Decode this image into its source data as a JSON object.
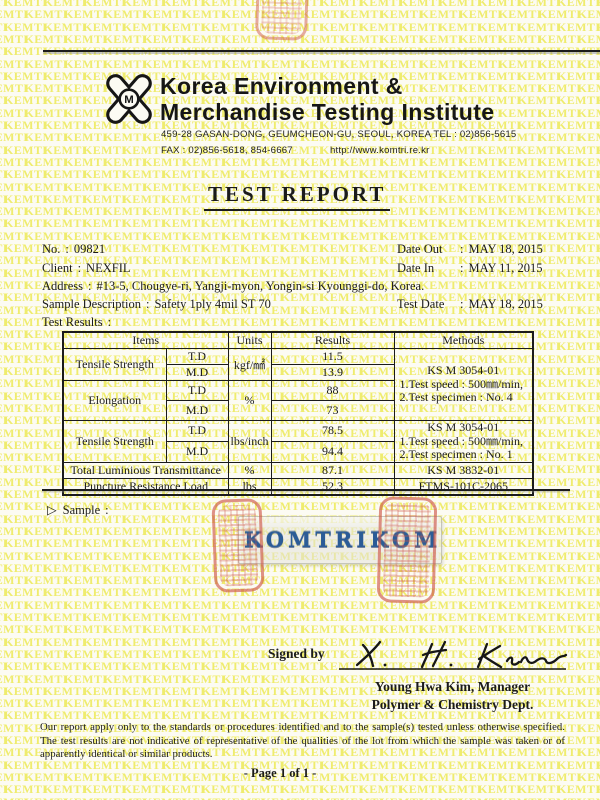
{
  "watermark": {
    "text": "KEMTI",
    "color": "#efec6e"
  },
  "colors": {
    "ink": "#1b1b1b",
    "watermark_yellow": "#efec6e",
    "stamp_red": "#ce5648",
    "film_text_blue": "#2b5c97"
  },
  "header": {
    "logo_letter": "M",
    "org_name_line1": "Korea Environment &",
    "org_name_line2": "Merchandise Testing Institute",
    "address_line": "459-28 GASAN-DONG, GEUMCHEON-GU, SEOUL, KOREA TEL : 02)856-5615",
    "fax_line": "FAX : 02)856-5618, 854-6667",
    "website": "http://www.komtri.re.kr"
  },
  "title": "TEST REPORT",
  "report_info": {
    "colon": ":",
    "no_label": "No.",
    "no_value": "09821",
    "client_label": "Client",
    "client_value": "NEXFIL",
    "address_label": "Address",
    "address_value": "#13-5, Chougye-ri, Yangji-myon, Yongin-si Kyounggi-do, Korea.",
    "sample_desc_label": "Sample Description",
    "sample_desc_value": "Safety 1ply 4mil ST 70",
    "test_results_label": "Test Results",
    "date_out_label": "Date Out",
    "date_out_value": "MAY 18, 2015",
    "date_in_label": "Date In",
    "date_in_value": "MAY 11, 2015",
    "test_date_label": "Test Date",
    "test_date_value": "MAY 18, 2015"
  },
  "table": {
    "columns": [
      "Items",
      "Units",
      "Results",
      "Methods"
    ],
    "tensile_kgf": {
      "item": "Tensile Strength",
      "sub1": "T.D",
      "sub2": "M.D",
      "unit": "kgf/㎟",
      "res1": "11.5",
      "res2": "13.9"
    },
    "elongation": {
      "item": "Elongation",
      "sub1": "T.D",
      "sub2": "M.D",
      "unit": "%",
      "res1": "88",
      "res2": "73"
    },
    "tensile_lbs": {
      "item": "Tensile Strength",
      "sub1": "T.D",
      "sub2": "M.D",
      "unit": "lbs/inch",
      "res1": "78.5",
      "res2": "94.4"
    },
    "methods_a": {
      "l1": "KS M 3054-01",
      "l2": "1.Test speed : 500㎜/min,",
      "l3": "2.Test specimen : No. 4"
    },
    "methods_b": {
      "l1": "KS M 3054-01",
      "l2": "1.Test speed : 500㎜/min,",
      "l3": "2.Test specimen : No. 1"
    },
    "tlt": {
      "item": "Total Luminious Transmittance",
      "unit": "%",
      "res": "87.1",
      "method": "KS M 3832-01"
    },
    "prl": {
      "item": "Puncture Resistance Load",
      "unit": "lbs",
      "res": "52.3",
      "method": "FTMS-101C-2065"
    }
  },
  "sample_section": {
    "marker": "▷",
    "label": "Sample",
    "film_word1": "KOMTRI",
    "film_word2": "KOM"
  },
  "signature": {
    "signed_by_label": "Signed by",
    "name_line": "Young Hwa Kim, Manager",
    "dept_line": "Polymer & Chemistry Dept."
  },
  "footer": {
    "disclaimer": "Our report apply only to the standards or procedures identified and to the sample(s) tested unless otherwise specified. The test results are not indicative of representative of the qualities of the lot from which the sample was taken or of apparently identical or similar products.",
    "page": "- Page 1 of 1 -"
  }
}
